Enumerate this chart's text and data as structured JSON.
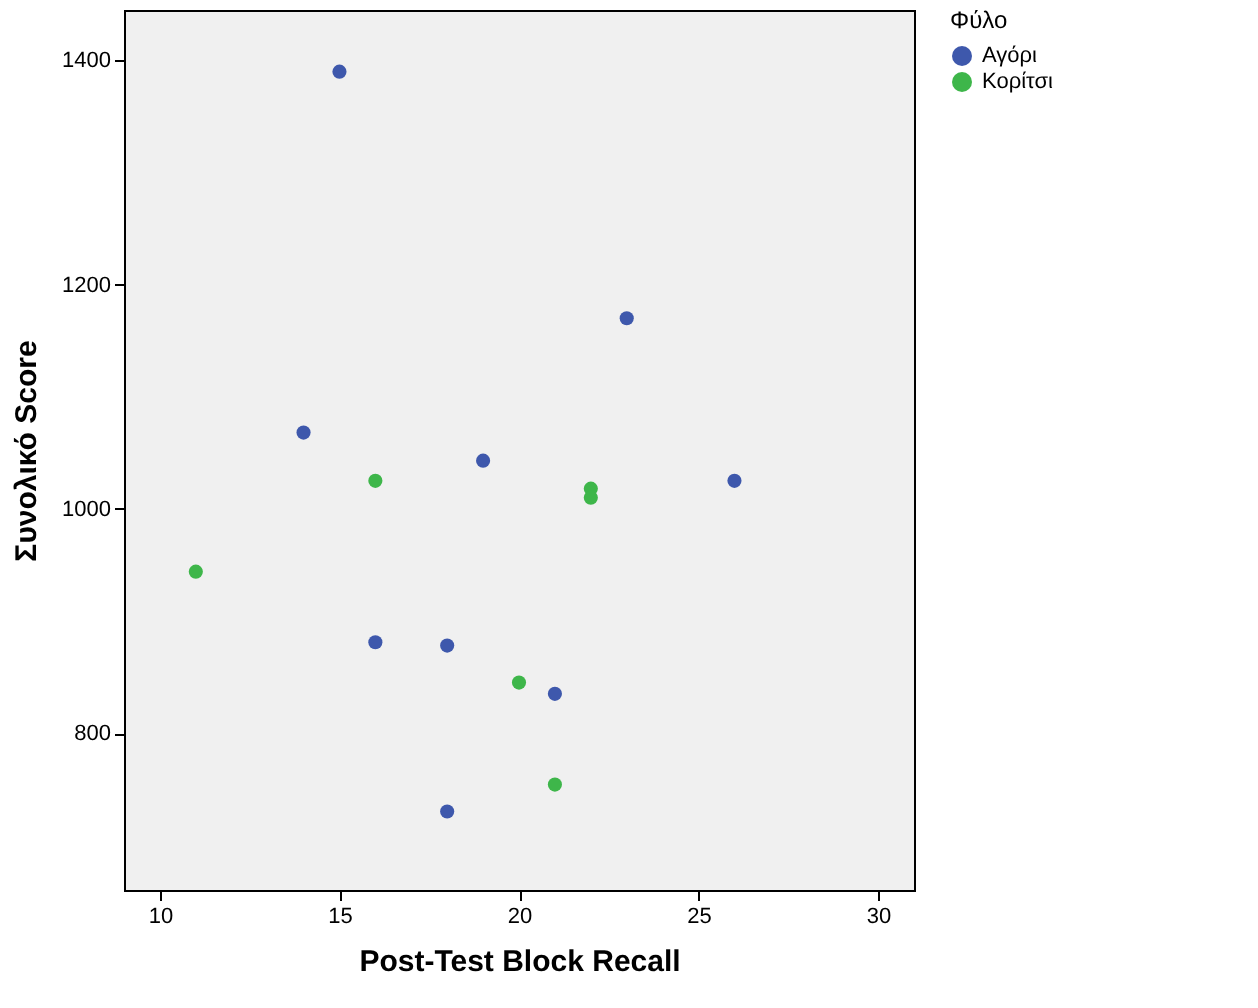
{
  "chart_data": {
    "type": "scatter",
    "xlabel": "Post-Test Block Recall",
    "ylabel": "Συνολικό Score",
    "legend_title": "Φύλο",
    "legend": "top right",
    "grid": false,
    "marker": "circle",
    "xlim": [
      9,
      31
    ],
    "xticks": [
      10,
      15,
      20,
      25,
      30
    ],
    "ylim": [
      660,
      1445
    ],
    "yticks": [
      800,
      1000,
      1200,
      1400
    ],
    "series": [
      {
        "name": "Αγόρι",
        "color": "#3e58ac",
        "x": [
          15,
          23,
          14,
          19,
          26,
          16,
          18,
          21,
          18
        ],
        "values": [
          1390,
          1170,
          1068,
          1043,
          1025,
          881,
          878,
          835,
          730
        ]
      },
      {
        "name": "Κορίτσι",
        "color": "#3eb64a",
        "x": [
          16,
          22,
          22,
          11,
          20,
          21
        ],
        "values": [
          1025,
          1018,
          1010,
          944,
          845,
          754
        ]
      }
    ]
  }
}
